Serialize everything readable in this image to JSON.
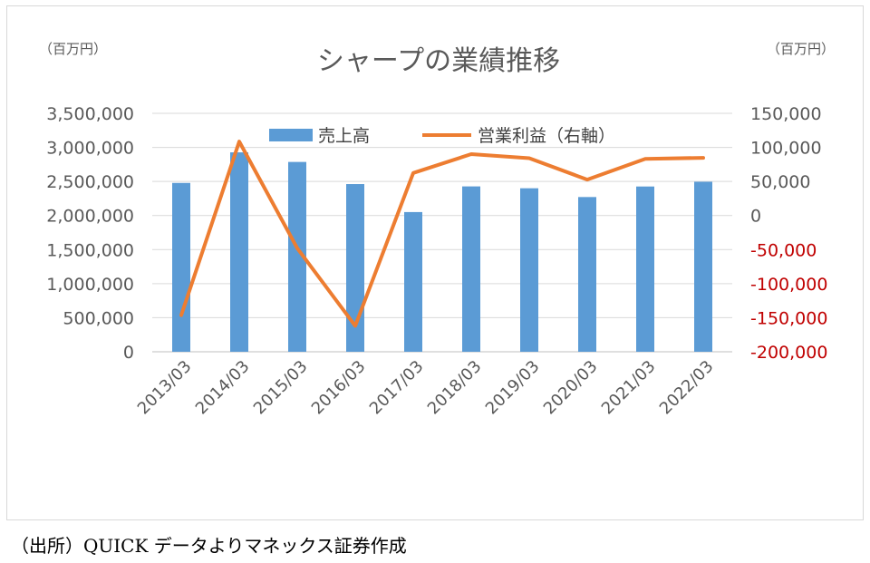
{
  "source_note": "（出所）QUICK データよりマネックス証券作成",
  "chart_data": {
    "type": "bar+line",
    "title": "シャープの業績推移",
    "unit_left": "（百万円）",
    "unit_right": "（百万円）",
    "categories": [
      "2013/03",
      "2014/03",
      "2015/03",
      "2016/03",
      "2017/03",
      "2018/03",
      "2019/03",
      "2020/03",
      "2021/03",
      "2022/03"
    ],
    "series": [
      {
        "name": "売上高",
        "type": "bar",
        "axis": "left",
        "color": "#5b9bd5",
        "values": [
          2478600,
          2927200,
          2786300,
          2461600,
          2050600,
          2427300,
          2400000,
          2271200,
          2425900,
          2495600
        ]
      },
      {
        "name": "営業利益（右軸）",
        "type": "line",
        "axis": "right",
        "color": "#ed7d31",
        "values": [
          -146300,
          108600,
          -48000,
          -162000,
          62400,
          90100,
          84100,
          52700,
          83100,
          84700
        ]
      }
    ],
    "ylim_left": [
      0,
      3500000
    ],
    "yticks_left": [
      "0",
      "500,000",
      "1,000,000",
      "1,500,000",
      "2,000,000",
      "2,500,000",
      "3,000,000",
      "3,500,000"
    ],
    "ylim_right": [
      -200000,
      150000
    ],
    "yticks_right": [
      "-200,000",
      "-150,000",
      "-100,000",
      "-50,000",
      "0",
      "50,000",
      "100,000",
      "150,000"
    ],
    "negative_tick_color": "#c00000",
    "grid": true,
    "legend_position": "top"
  }
}
